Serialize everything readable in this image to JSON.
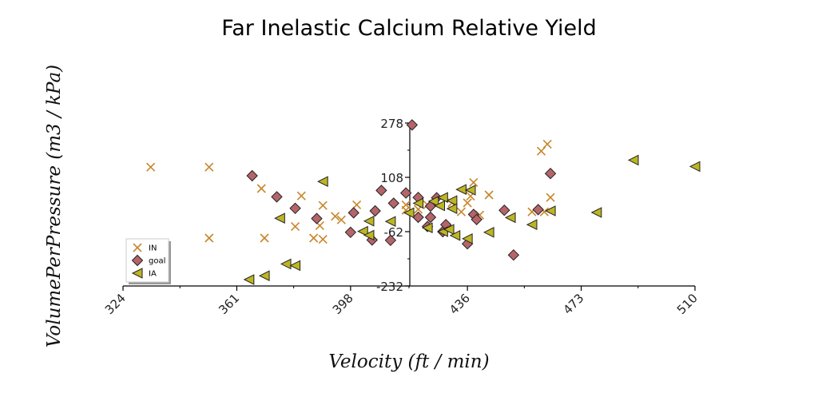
{
  "chart_data": {
    "type": "scatter",
    "title": "Far Inelastic Calcium Relative Yield",
    "xlabel": "Velocity (ft / min)",
    "ylabel": "VolumePerPressure (m3 / kPa)",
    "xlim": [
      324,
      510
    ],
    "ylim": [
      -232,
      278
    ],
    "x_ticks": [
      "324",
      "361",
      "398",
      "436",
      "473",
      "510"
    ],
    "y_ticks": [
      "278",
      "108",
      "-62",
      "-232"
    ],
    "legend_position": "lower-left",
    "grid": false,
    "series": [
      {
        "name": "IN",
        "marker": "x",
        "color": "#c8862b",
        "points": [
          [
            333,
            140
          ],
          [
            352,
            140
          ],
          [
            352,
            -82
          ],
          [
            369,
            73
          ],
          [
            370,
            -82
          ],
          [
            382,
            50
          ],
          [
            380,
            -46
          ],
          [
            386,
            -82
          ],
          [
            388,
            -43
          ],
          [
            389,
            20
          ],
          [
            389,
            -86
          ],
          [
            393,
            -14
          ],
          [
            395,
            -25
          ],
          [
            400,
            22
          ],
          [
            416,
            22
          ],
          [
            420,
            8
          ],
          [
            431,
            28
          ],
          [
            436,
            28
          ],
          [
            434,
            0
          ],
          [
            437,
            49
          ],
          [
            438,
            92
          ],
          [
            443,
            53
          ],
          [
            440,
            -10
          ],
          [
            457,
            0
          ],
          [
            460,
            190
          ],
          [
            462,
            212
          ],
          [
            461,
            0
          ],
          [
            463,
            45
          ],
          [
            423,
            22
          ],
          [
            416,
            5
          ]
        ]
      },
      {
        "name": "goal",
        "marker": "D",
        "color": "#b5656a",
        "points": [
          [
            366,
            113
          ],
          [
            374,
            47
          ],
          [
            380,
            11
          ],
          [
            387,
            -21
          ],
          [
            398,
            -64
          ],
          [
            399,
            -3
          ],
          [
            405,
            -88
          ],
          [
            406,
            3
          ],
          [
            411,
            -89
          ],
          [
            408,
            67
          ],
          [
            412,
            27
          ],
          [
            416,
            59
          ],
          [
            418,
            272
          ],
          [
            420,
            -17
          ],
          [
            420,
            45
          ],
          [
            424,
            18
          ],
          [
            424,
            -17
          ],
          [
            423,
            -46
          ],
          [
            426,
            44
          ],
          [
            428,
            -62
          ],
          [
            429,
            -40
          ],
          [
            436,
            -100
          ],
          [
            438,
            -8
          ],
          [
            439,
            -24
          ],
          [
            448,
            5
          ],
          [
            451,
            -135
          ],
          [
            459,
            7
          ],
          [
            463,
            120
          ]
        ]
      },
      {
        "name": "IA",
        "marker": "<",
        "color": "#bdb523",
        "points": [
          [
            370,
            -200
          ],
          [
            365,
            -212
          ],
          [
            375,
            -20
          ],
          [
            377,
            -163
          ],
          [
            380,
            -168
          ],
          [
            389,
            95
          ],
          [
            402,
            -61
          ],
          [
            404,
            -73
          ],
          [
            404,
            -29
          ],
          [
            411,
            -30
          ],
          [
            417,
            -3
          ],
          [
            420,
            27
          ],
          [
            423,
            -50
          ],
          [
            425,
            33
          ],
          [
            427,
            19
          ],
          [
            428,
            45
          ],
          [
            431,
            35
          ],
          [
            428,
            -62
          ],
          [
            430,
            -55
          ],
          [
            431,
            10
          ],
          [
            432,
            -74
          ],
          [
            434,
            70
          ],
          [
            436,
            -84
          ],
          [
            437,
            68
          ],
          [
            443,
            -64
          ],
          [
            450,
            -18
          ],
          [
            457,
            -40
          ],
          [
            463,
            3
          ],
          [
            478,
            -2
          ],
          [
            490,
            162
          ],
          [
            510,
            142
          ]
        ]
      }
    ]
  }
}
